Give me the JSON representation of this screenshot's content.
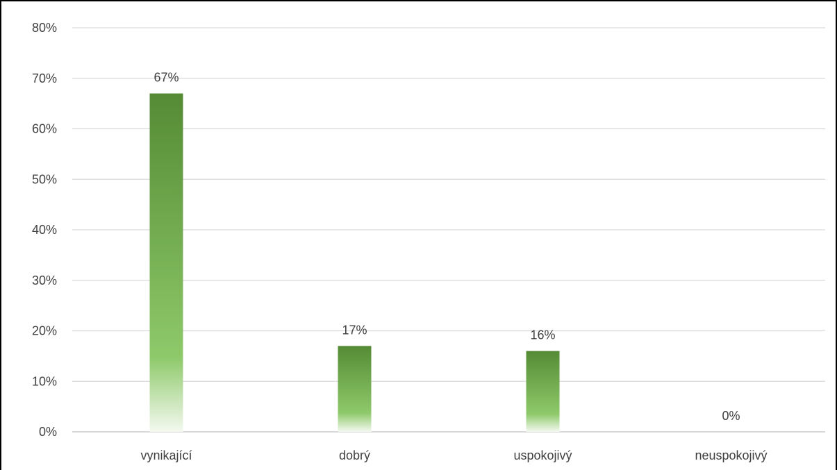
{
  "chart_data": {
    "type": "bar",
    "title": "",
    "xlabel": "",
    "ylabel": "",
    "categories": [
      "vynikající",
      "dobrý",
      "uspokojivý",
      "neuspokojivý"
    ],
    "values": [
      67,
      17,
      16,
      0
    ],
    "data_labels": [
      "67%",
      "17%",
      "16%",
      "0%"
    ],
    "y_ticks": [
      0,
      10,
      20,
      30,
      40,
      50,
      60,
      70,
      80
    ],
    "y_tick_labels": [
      "0%",
      "10%",
      "20%",
      "30%",
      "40%",
      "50%",
      "60%",
      "70%",
      "80%"
    ],
    "ylim": [
      0,
      80
    ],
    "grid": true,
    "legend": "none",
    "colors": {
      "bar_top": "#548b34",
      "bar_mid": "#8ec96a",
      "bar_bottom": "#f4f9f0",
      "grid": "#d9d9d9",
      "axis": "#bfbfbf",
      "frame": "#000000",
      "text": "#404040"
    }
  }
}
